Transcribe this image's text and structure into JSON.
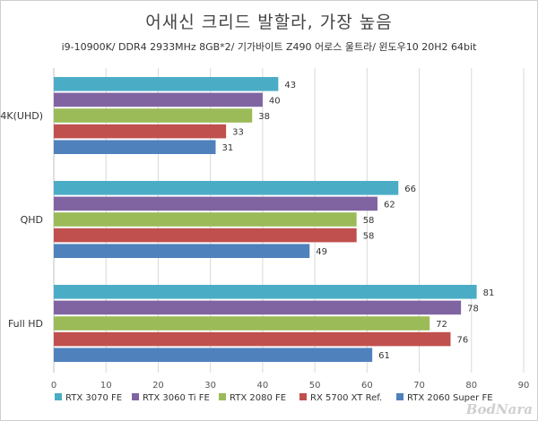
{
  "title": "어새신 크리드 발할라, 가장 높음",
  "subtitle": "i9-10900K/ DDR4 2933MHz 8GB*2/ 기가바이트 Z490 어로스 울트라/ 윈도우10 20H2 64bit",
  "watermark": "BodNara",
  "colors": {
    "RTX 3070 FE": "#4bacc6",
    "RTX 3060 Ti FE": "#8064a2",
    "RTX 2080 FE": "#9bbb59",
    "RX 5700 XT Ref.": "#c0504d",
    "RTX 2060 Super FE": "#4f81bd"
  },
  "chart_data": {
    "type": "bar",
    "orientation": "horizontal",
    "title": "어새신 크리드 발할라, 가장 높음",
    "subtitle": "i9-10900K/ DDR4 2933MHz 8GB*2/ 기가바이트 Z490 어로스 울트라/ 윈도우10 20H2 64bit",
    "categories": [
      "4K(UHD)",
      "QHD",
      "Full HD"
    ],
    "series": [
      {
        "name": "RTX 3070 FE",
        "values": [
          43,
          66,
          81
        ]
      },
      {
        "name": "RTX 3060 Ti FE",
        "values": [
          40,
          62,
          78
        ]
      },
      {
        "name": "RTX 2080 FE",
        "values": [
          38,
          58,
          72
        ]
      },
      {
        "name": "RX 5700 XT Ref.",
        "values": [
          33,
          58,
          76
        ]
      },
      {
        "name": "RTX 2060 Super FE",
        "values": [
          31,
          49,
          61
        ]
      }
    ],
    "xlim": [
      0,
      90
    ],
    "xticks": [
      0,
      10,
      20,
      30,
      40,
      50,
      60,
      70,
      80,
      90
    ],
    "grid": true,
    "legend_position": "bottom"
  }
}
